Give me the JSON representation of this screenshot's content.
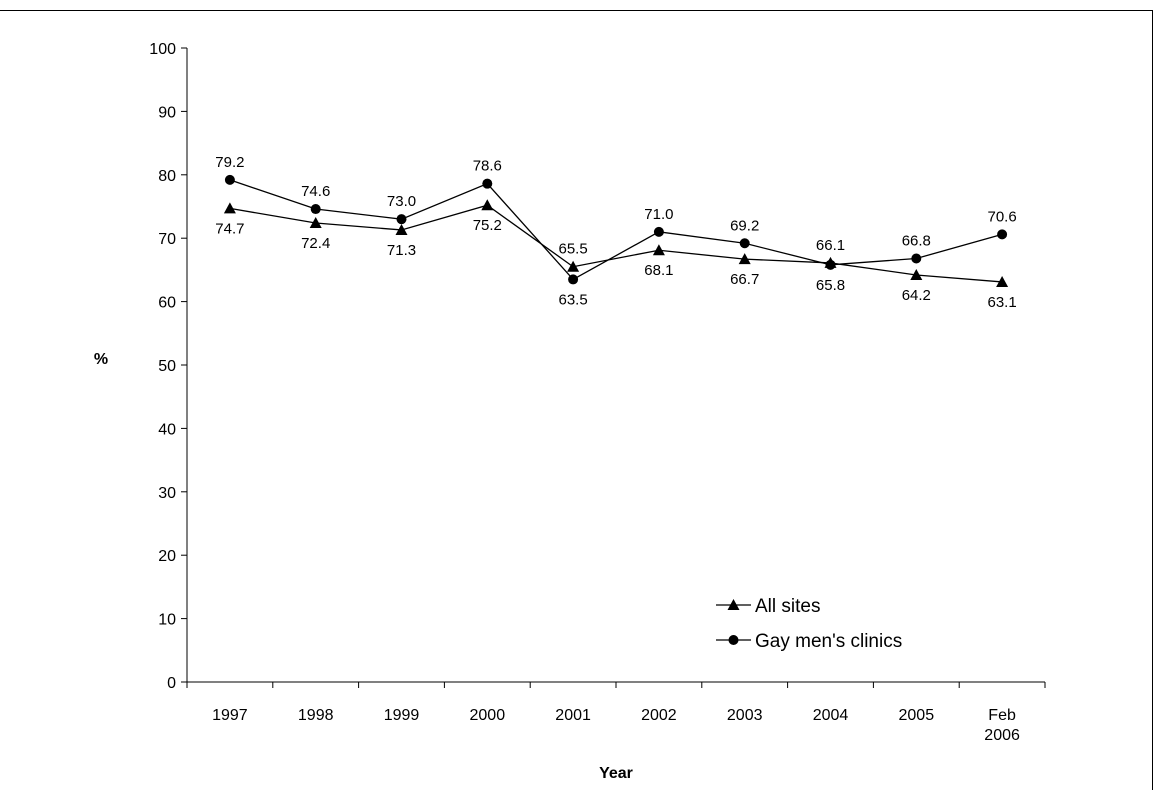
{
  "chart_data": {
    "type": "line",
    "title": "",
    "xlabel": "Year",
    "ylabel": "%",
    "ylim": [
      0,
      100
    ],
    "yticks": [
      0,
      10,
      20,
      30,
      40,
      50,
      60,
      70,
      80,
      90,
      100
    ],
    "grid": false,
    "legend_position": "bottom-right",
    "categories": [
      [
        "1997"
      ],
      [
        "1998"
      ],
      [
        "1999"
      ],
      [
        "2000"
      ],
      [
        "2001"
      ],
      [
        "2002"
      ],
      [
        "2003"
      ],
      [
        "2004"
      ],
      [
        "2005"
      ],
      [
        "Feb",
        "2006"
      ]
    ],
    "series": [
      {
        "name": "All sites",
        "marker": "triangle",
        "color": "#000000",
        "values": [
          74.7,
          72.4,
          71.3,
          75.2,
          65.5,
          68.1,
          66.7,
          66.1,
          64.2,
          63.1
        ],
        "labels": [
          "74.7",
          "72.4",
          "71.3",
          "75.2",
          "65.5",
          "68.1",
          "66.7",
          "66.1",
          "64.2",
          "63.1"
        ]
      },
      {
        "name": "Gay men's clinics",
        "marker": "circle",
        "color": "#000000",
        "values": [
          79.2,
          74.6,
          73.0,
          78.6,
          63.5,
          71.0,
          69.2,
          65.8,
          66.8,
          70.6
        ],
        "labels": [
          "79.2",
          "74.6",
          "73.0",
          "78.6",
          "63.5",
          "71.0",
          "69.2",
          "65.8",
          "66.8",
          "70.6"
        ]
      }
    ]
  }
}
